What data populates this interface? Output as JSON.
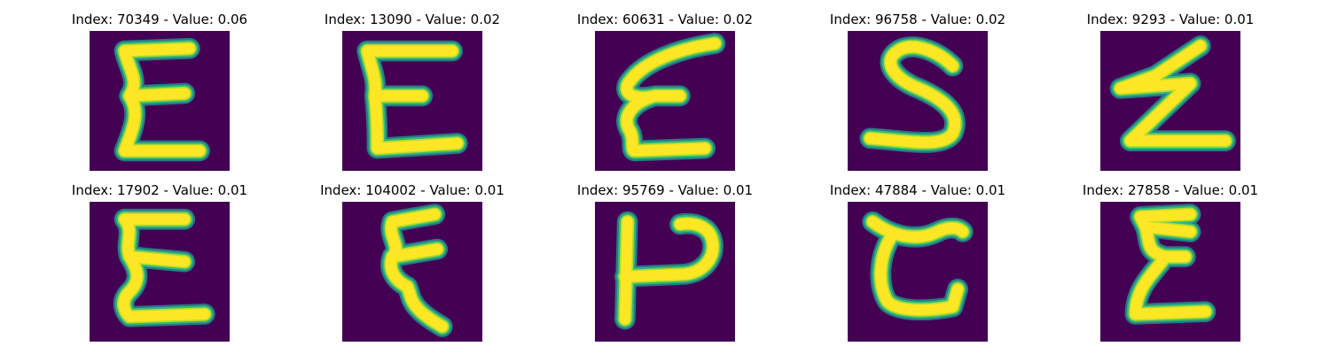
{
  "colors": {
    "background": "#440154",
    "stroke_core": "#fde725",
    "stroke_mid": "#b5de2b",
    "stroke_edge": "#35b779",
    "stroke_halo": "#21918c"
  },
  "panels": [
    {
      "title": "Index: 70349 - Value: 0.06",
      "glyph": "E-zigzag"
    },
    {
      "title": "Index: 13090 - Value: 0.02",
      "glyph": "E-block"
    },
    {
      "title": "Index: 60631 - Value: 0.02",
      "glyph": "E-slanted"
    },
    {
      "title": "Index: 96758 - Value: 0.02",
      "glyph": "S"
    },
    {
      "title": "Index: 9293 - Value: 0.01",
      "glyph": "Z-lightning"
    },
    {
      "title": "Index: 17902 - Value: 0.01",
      "glyph": "E-zigzag-bold"
    },
    {
      "title": "Index: 104002 - Value: 0.01",
      "glyph": "E-narrow"
    },
    {
      "title": "Index: 95769 - Value: 0.01",
      "glyph": "P-rotated"
    },
    {
      "title": "Index: 47884 - Value: 0.01",
      "glyph": "C-open"
    },
    {
      "title": "Index: 27858 - Value: 0.01",
      "glyph": "Z-sigma"
    }
  ]
}
